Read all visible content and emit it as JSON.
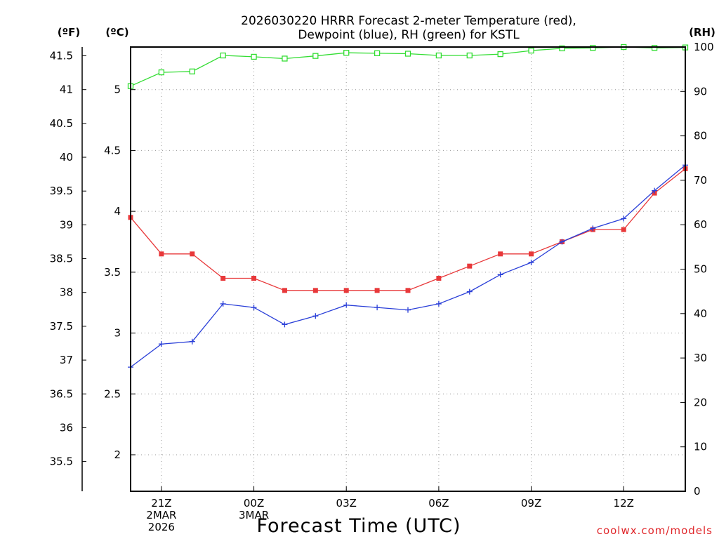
{
  "chart_data": {
    "type": "line",
    "title_lines": [
      "2026030220 HRRR Forecast 2-meter Temperature (red),",
      "Dewpoint (blue), RH (green) for KSTL"
    ],
    "xlabel": "Forecast Time (UTC)",
    "credit": "coolwx.com/models",
    "units": {
      "left_f": "(ºF)",
      "left_c": "(ºC)",
      "right": "(RH)"
    },
    "x_range": [
      -1,
      17
    ],
    "x_ticks": [
      {
        "x": 0,
        "lines": [
          "21Z",
          "2MAR",
          "2026"
        ]
      },
      {
        "x": 3,
        "lines": [
          "00Z",
          "3MAR"
        ]
      },
      {
        "x": 6,
        "lines": [
          "03Z"
        ]
      },
      {
        "x": 9,
        "lines": [
          "06Z"
        ]
      },
      {
        "x": 12,
        "lines": [
          "09Z"
        ]
      },
      {
        "x": 15,
        "lines": [
          "12Z"
        ]
      }
    ],
    "y_celsius": {
      "range": [
        1.7,
        5.35
      ],
      "ticks": [
        2,
        2.5,
        3,
        3.5,
        4,
        4.5,
        5
      ],
      "tick_labels": [
        "2",
        "2.5",
        "3",
        "3.5",
        "4",
        "4.5",
        "5"
      ]
    },
    "y_fahrenheit": {
      "ticks": [
        35.5,
        36,
        36.5,
        37,
        37.5,
        38,
        38.5,
        39,
        39.5,
        40,
        40.5,
        41,
        41.5
      ],
      "tick_labels": [
        "35.5",
        "36",
        "36.5",
        "37",
        "37.5",
        "38",
        "38.5",
        "39",
        "39.5",
        "40",
        "40.5",
        "41",
        "41.5"
      ]
    },
    "y_rh": {
      "range": [
        0,
        100
      ],
      "ticks": [
        0,
        10,
        20,
        30,
        40,
        50,
        60,
        70,
        80,
        90,
        100
      ],
      "tick_labels": [
        "0",
        "10",
        "20",
        "30",
        "40",
        "50",
        "60",
        "70",
        "80",
        "90",
        "100"
      ]
    },
    "series": [
      {
        "name": "Temperature",
        "color": "#e8383a",
        "marker": "filled-square",
        "axis": "celsius",
        "x": [
          -1,
          0,
          1,
          2,
          3,
          4,
          5,
          6,
          7,
          8,
          9,
          10,
          11,
          12,
          13,
          14,
          15,
          16,
          17
        ],
        "values": [
          3.95,
          3.65,
          3.65,
          3.45,
          3.45,
          3.35,
          3.35,
          3.35,
          3.35,
          3.35,
          3.45,
          3.55,
          3.65,
          3.65,
          3.75,
          3.85,
          3.85,
          4.15,
          4.35
        ]
      },
      {
        "name": "Dewpoint",
        "color": "#2a3fd8",
        "marker": "plus",
        "axis": "celsius",
        "x": [
          -1,
          0,
          1,
          2,
          3,
          4,
          5,
          6,
          7,
          8,
          9,
          10,
          11,
          12,
          13,
          14,
          15,
          16,
          17
        ],
        "values": [
          2.72,
          2.91,
          2.93,
          3.24,
          3.21,
          3.07,
          3.14,
          3.23,
          3.21,
          3.19,
          3.24,
          3.34,
          3.48,
          3.58,
          3.75,
          3.86,
          3.94,
          4.17,
          4.38
        ]
      },
      {
        "name": "RH",
        "color": "#33dd33",
        "marker": "open-square",
        "axis": "rh",
        "x": [
          -1,
          0,
          1,
          2,
          3,
          4,
          5,
          6,
          7,
          8,
          9,
          10,
          11,
          12,
          13,
          14,
          15,
          16,
          17
        ],
        "values": [
          91.2,
          94.3,
          94.5,
          98.1,
          97.8,
          97.4,
          98.0,
          98.7,
          98.6,
          98.5,
          98.1,
          98.1,
          98.4,
          99.2,
          99.7,
          99.8,
          100.0,
          99.8,
          99.9
        ]
      }
    ]
  }
}
